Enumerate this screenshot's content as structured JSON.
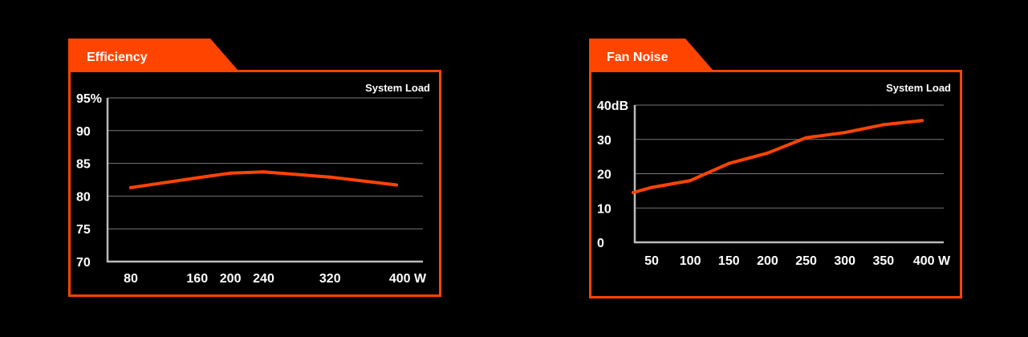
{
  "colors": {
    "accent": "#ff4400",
    "background": "#000000",
    "text": "#ffffff",
    "grid": "#777777"
  },
  "chart_data": [
    {
      "type": "line",
      "title": "Efficiency",
      "corner_label": "System Load",
      "categories": [
        "80",
        "160",
        "200",
        "240",
        "320",
        "400 W"
      ],
      "x": [
        80,
        160,
        200,
        240,
        320,
        400
      ],
      "values": [
        81.3,
        82.8,
        83.5,
        83.7,
        82.9,
        81.7
      ],
      "ylim": [
        70,
        95
      ],
      "yticks": [
        70,
        75,
        80,
        85,
        90,
        95
      ],
      "ytick_labels": [
        "70",
        "75",
        "80",
        "85",
        "90",
        "95%"
      ],
      "grid": true
    },
    {
      "type": "line",
      "title": "Fan Noise",
      "corner_label": "System Load",
      "categories": [
        "50",
        "100",
        "150",
        "200",
        "250",
        "300",
        "350",
        "400 W"
      ],
      "x": [
        25,
        50,
        100,
        150,
        200,
        250,
        300,
        350,
        400
      ],
      "values": [
        14.5,
        16,
        18,
        23,
        26,
        30.5,
        32,
        34.3,
        35.5
      ],
      "ylim": [
        0,
        40
      ],
      "yticks": [
        0,
        10,
        20,
        30,
        40
      ],
      "ytick_labels": [
        "0",
        "10",
        "20",
        "30",
        "40dB"
      ],
      "grid": true
    }
  ]
}
